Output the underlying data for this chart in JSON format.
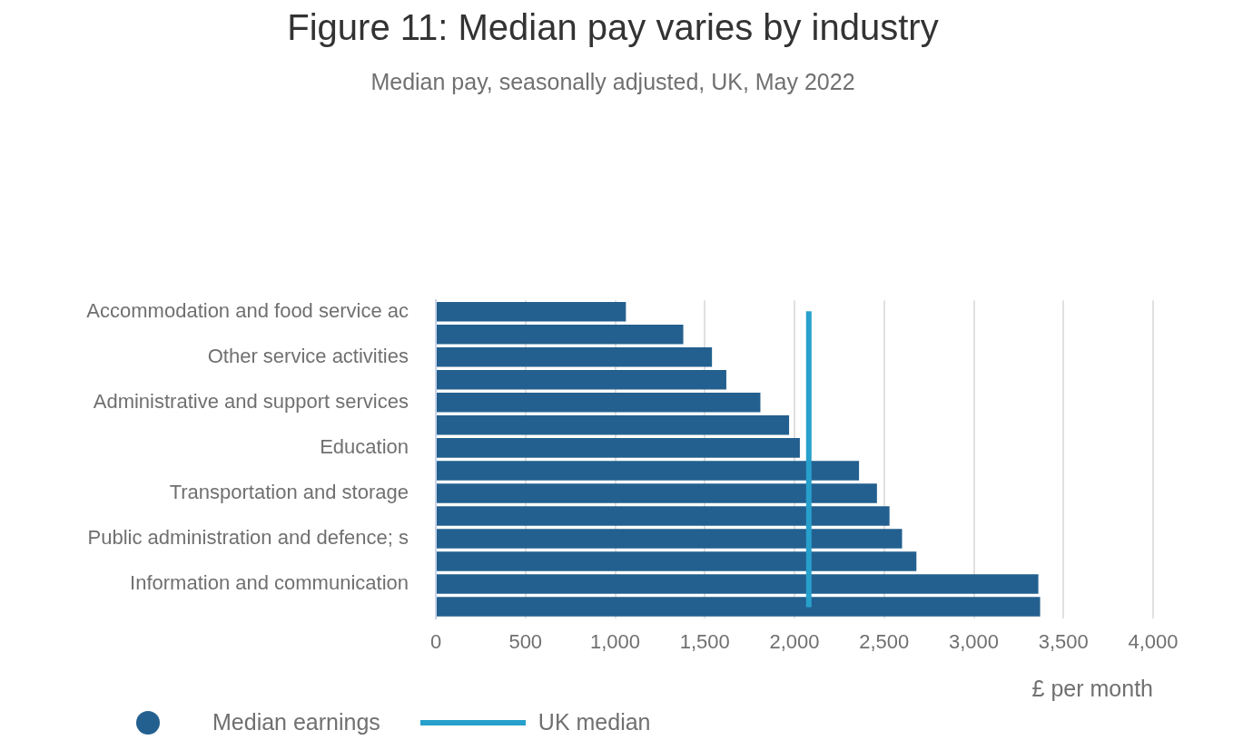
{
  "chart_data": {
    "type": "bar",
    "orientation": "horizontal",
    "title": "Figure 11: Median pay varies by industry",
    "subtitle": "Median pay, seasonally adjusted, UK, May 2022",
    "xlabel": "£ per month",
    "categories": [
      "Accommodation and food service ac",
      null,
      "Other service activities",
      null,
      "Administrative and support services",
      null,
      "Education",
      null,
      "Transportation and storage",
      null,
      "Public administration and defence; s",
      null,
      "Information and communication",
      null
    ],
    "series": [
      {
        "name": "Median earnings",
        "color": "#23608f",
        "values": [
          1060,
          1380,
          1540,
          1620,
          1810,
          1970,
          2030,
          2360,
          2460,
          2530,
          2600,
          2680,
          3360,
          3370
        ]
      }
    ],
    "xlim": [
      0,
      4000
    ],
    "xticks": [
      {
        "value": 0,
        "label": "0"
      },
      {
        "value": 500,
        "label": "500"
      },
      {
        "value": 1000,
        "label": "1,000"
      },
      {
        "value": 1500,
        "label": "1,500"
      },
      {
        "value": 2000,
        "label": "2,000"
      },
      {
        "value": 2500,
        "label": "2,500"
      },
      {
        "value": 3000,
        "label": "3,000"
      },
      {
        "value": 3500,
        "label": "3,500"
      },
      {
        "value": 4000,
        "label": "4,000"
      }
    ],
    "ref_lines": [
      {
        "axis": "x",
        "value": 2080,
        "label": "UK median",
        "color": "#27a0cc"
      }
    ],
    "grid": "x",
    "legend": "bottom left"
  }
}
